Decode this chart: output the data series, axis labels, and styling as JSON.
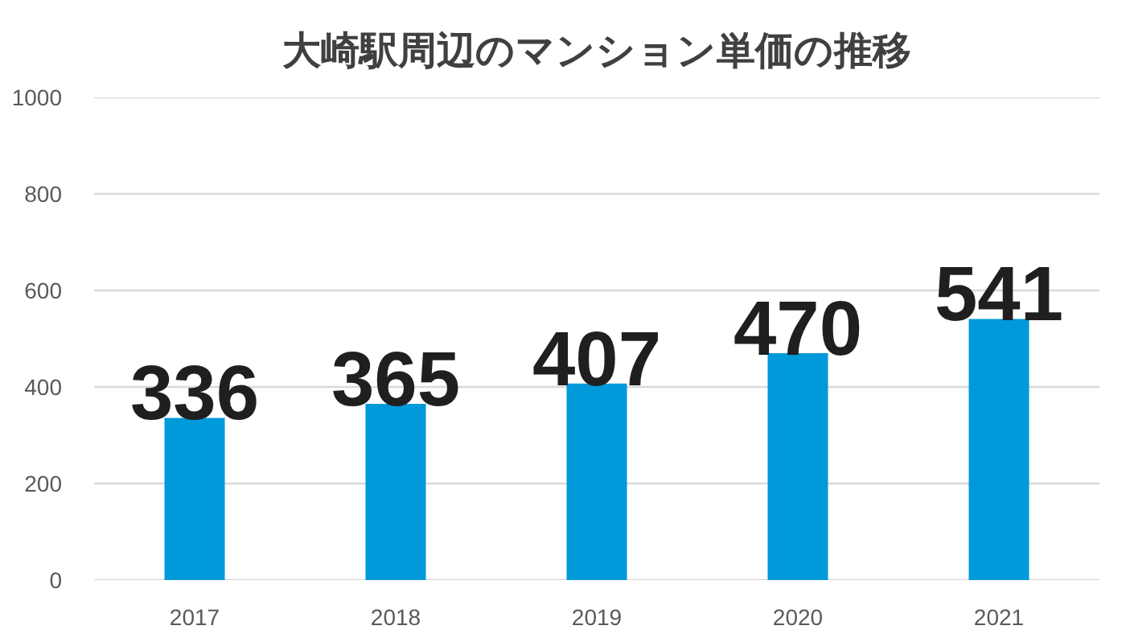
{
  "chart_data": {
    "type": "bar",
    "title": "大崎駅周辺のマンション単価の推移",
    "categories": [
      "2017",
      "2018",
      "2019",
      "2020",
      "2021"
    ],
    "values": [
      336,
      365,
      407,
      470,
      541
    ],
    "color": "#0099da",
    "ylim": [
      0,
      1000
    ],
    "yticks": [
      0,
      200,
      400,
      600,
      800,
      1000
    ],
    "grid": "y",
    "data_labels": true
  }
}
